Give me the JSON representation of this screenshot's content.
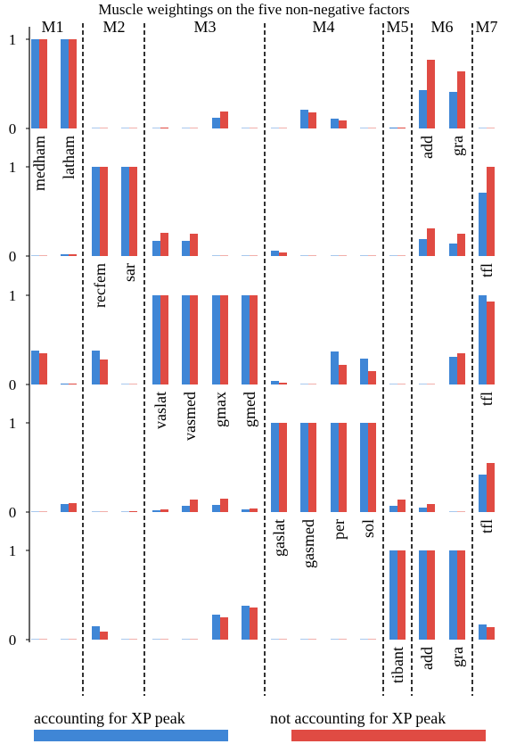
{
  "chart_data": {
    "type": "bar",
    "title": "Muscle weightings on the five non-negative factors",
    "groups": [
      "M1",
      "M2",
      "M3",
      "M4",
      "M5",
      "M6",
      "M7"
    ],
    "muscles": [
      "medham",
      "latham",
      "recfem",
      "sar",
      "vaslat",
      "vasmed",
      "gmax",
      "gmed",
      "gaslat",
      "gasmed",
      "per",
      "sol",
      "tibant",
      "add",
      "gra",
      "tfl"
    ],
    "muscle_groups": [
      "M1",
      "M1",
      "M2",
      "M2",
      "M3",
      "M3",
      "M3",
      "M3",
      "M4",
      "M4",
      "M4",
      "M4",
      "M5",
      "M6",
      "M6",
      "M7"
    ],
    "series": [
      {
        "name": "accounting for XP peak",
        "color": "#3f86d6"
      },
      {
        "name": "not accounting for XP peak",
        "color": "#e04b43"
      }
    ],
    "yticks": [
      "0",
      "1"
    ],
    "ylim": [
      0,
      1
    ],
    "grid": false,
    "legend": "bottom",
    "factors": [
      {
        "name": "factor-1",
        "values": [
          [
            1,
            1
          ],
          [
            1,
            1
          ],
          [
            0,
            0
          ],
          [
            0,
            0
          ],
          [
            0,
            0.01
          ],
          [
            0,
            0
          ],
          [
            0.12,
            0.19
          ],
          [
            0,
            0
          ],
          [
            0,
            0
          ],
          [
            0.21,
            0.18
          ],
          [
            0.11,
            0.09
          ],
          [
            0,
            0
          ],
          [
            0.01,
            0.01
          ],
          [
            0.43,
            0.77
          ],
          [
            0.41,
            0.64
          ],
          [
            0,
            0
          ]
        ],
        "labels": [
          {
            "text": "medham",
            "bar": 0
          },
          {
            "text": "latham",
            "bar": 1
          },
          {
            "text": "add",
            "bar": 13
          },
          {
            "text": "gra",
            "bar": 14
          }
        ]
      },
      {
        "name": "factor-2",
        "values": [
          [
            0,
            0
          ],
          [
            0.02,
            0.02
          ],
          [
            1,
            1
          ],
          [
            1,
            1
          ],
          [
            0.17,
            0.26
          ],
          [
            0.17,
            0.25
          ],
          [
            0,
            0
          ],
          [
            0,
            0
          ],
          [
            0.06,
            0.04
          ],
          [
            0,
            0
          ],
          [
            0,
            0
          ],
          [
            0,
            0
          ],
          [
            0,
            0
          ],
          [
            0.19,
            0.31
          ],
          [
            0.14,
            0.25
          ],
          [
            0.71,
            1
          ]
        ],
        "labels": [
          {
            "text": "recfem",
            "bar": 2
          },
          {
            "text": "sar",
            "bar": 3
          },
          {
            "text": "tfl",
            "bar": 15
          }
        ]
      },
      {
        "name": "factor-3",
        "values": [
          [
            0.38,
            0.35
          ],
          [
            0.01,
            0.01
          ],
          [
            0.38,
            0.28
          ],
          [
            0,
            0
          ],
          [
            1,
            1
          ],
          [
            1,
            1
          ],
          [
            1,
            1
          ],
          [
            1,
            1
          ],
          [
            0.04,
            0.02
          ],
          [
            0,
            0
          ],
          [
            0.37,
            0.22
          ],
          [
            0.29,
            0.15
          ],
          [
            0,
            0
          ],
          [
            0,
            0
          ],
          [
            0.31,
            0.35
          ],
          [
            1,
            0.93
          ]
        ],
        "labels": [
          {
            "text": "vaslat",
            "bar": 4
          },
          {
            "text": "vasmed",
            "bar": 5
          },
          {
            "text": "gmax",
            "bar": 6
          },
          {
            "text": "gmed",
            "bar": 7
          },
          {
            "text": "tfl",
            "bar": 15
          }
        ]
      },
      {
        "name": "factor-4",
        "values": [
          [
            0,
            0
          ],
          [
            0.09,
            0.1
          ],
          [
            0,
            0
          ],
          [
            0,
            0.01
          ],
          [
            0.02,
            0.03
          ],
          [
            0.07,
            0.14
          ],
          [
            0.08,
            0.15
          ],
          [
            0.03,
            0.04
          ],
          [
            1,
            1
          ],
          [
            1,
            1
          ],
          [
            1,
            1
          ],
          [
            1,
            1
          ],
          [
            0.07,
            0.14
          ],
          [
            0.05,
            0.09
          ],
          [
            0,
            0
          ],
          [
            0.42,
            0.55
          ]
        ],
        "labels": [
          {
            "text": "gaslat",
            "bar": 8
          },
          {
            "text": "gasmed",
            "bar": 9
          },
          {
            "text": "per",
            "bar": 10
          },
          {
            "text": "sol",
            "bar": 11
          },
          {
            "text": "tfl",
            "bar": 15
          }
        ]
      },
      {
        "name": "factor-5",
        "values": [
          [
            0,
            0
          ],
          [
            0,
            0
          ],
          [
            0.15,
            0.09
          ],
          [
            0,
            0
          ],
          [
            0,
            0
          ],
          [
            0,
            0
          ],
          [
            0.28,
            0.25
          ],
          [
            0.38,
            0.36
          ],
          [
            0,
            0
          ],
          [
            0,
            0
          ],
          [
            0,
            0
          ],
          [
            0,
            0
          ],
          [
            1,
            1
          ],
          [
            1,
            1
          ],
          [
            1,
            1
          ],
          [
            0.17,
            0.14
          ]
        ],
        "labels": [
          {
            "text": "tibant",
            "bar": 12
          },
          {
            "text": "add",
            "bar": 13
          },
          {
            "text": "gra",
            "bar": 14
          }
        ]
      }
    ]
  }
}
